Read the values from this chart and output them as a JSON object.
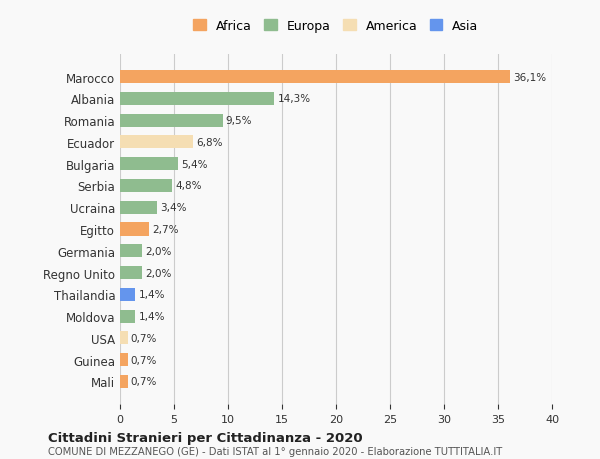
{
  "countries": [
    "Marocco",
    "Albania",
    "Romania",
    "Ecuador",
    "Bulgaria",
    "Serbia",
    "Ucraina",
    "Egitto",
    "Germania",
    "Regno Unito",
    "Thailandia",
    "Moldova",
    "USA",
    "Guinea",
    "Mali"
  ],
  "values": [
    36.1,
    14.3,
    9.5,
    6.8,
    5.4,
    4.8,
    3.4,
    2.7,
    2.0,
    2.0,
    1.4,
    1.4,
    0.7,
    0.7,
    0.7
  ],
  "labels": [
    "36,1%",
    "14,3%",
    "9,5%",
    "6,8%",
    "5,4%",
    "4,8%",
    "3,4%",
    "2,7%",
    "2,0%",
    "2,0%",
    "1,4%",
    "1,4%",
    "0,7%",
    "0,7%",
    "0,7%"
  ],
  "bar_color_list": [
    "#F4A460",
    "#8FBC8F",
    "#8FBC8F",
    "#F5DEB3",
    "#8FBC8F",
    "#8FBC8F",
    "#8FBC8F",
    "#F4A460",
    "#8FBC8F",
    "#8FBC8F",
    "#6495ED",
    "#8FBC8F",
    "#F5DEB3",
    "#F4A460",
    "#F4A460"
  ],
  "legend_colors": {
    "Africa": "#F4A460",
    "Europa": "#8FBC8F",
    "America": "#F5DEB3",
    "Asia": "#6495ED"
  },
  "xlim": [
    0,
    40
  ],
  "xticks": [
    0,
    5,
    10,
    15,
    20,
    25,
    30,
    35,
    40
  ],
  "title": "Cittadini Stranieri per Cittadinanza - 2020",
  "subtitle": "COMUNE DI MEZZANEGO (GE) - Dati ISTAT al 1° gennaio 2020 - Elaborazione TUTTITALIA.IT",
  "background_color": "#f9f9f9",
  "grid_color": "#cccccc",
  "legend_order": [
    "Africa",
    "Europa",
    "America",
    "Asia"
  ]
}
